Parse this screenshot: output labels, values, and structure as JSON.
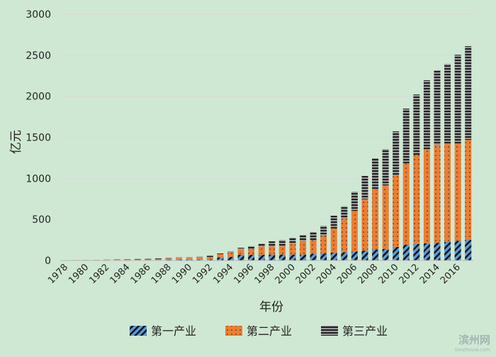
{
  "chart_data": {
    "type": "bar",
    "stacked": true,
    "title": "",
    "xlabel": "年份",
    "ylabel": "亿元",
    "ylim": [
      0,
      3000
    ],
    "yticks": [
      0,
      500,
      1000,
      1500,
      2000,
      2500,
      3000
    ],
    "categories": [
      "1978",
      "1979",
      "1980",
      "1981",
      "1982",
      "1983",
      "1984",
      "1985",
      "1986",
      "1987",
      "1988",
      "1989",
      "1990",
      "1991",
      "1992",
      "1993",
      "1994",
      "1995",
      "1996",
      "1997",
      "1998",
      "1999",
      "2000",
      "2001",
      "2002",
      "2003",
      "2004",
      "2005",
      "2006",
      "2007",
      "2008",
      "2009",
      "2010",
      "2011",
      "2012",
      "2013",
      "2014",
      "2015",
      "2016",
      "2017"
    ],
    "xtick_labels": [
      "1978",
      "1980",
      "1982",
      "1984",
      "1986",
      "1988",
      "1990",
      "1992",
      "1994",
      "1996",
      "1998",
      "2000",
      "2002",
      "2004",
      "2006",
      "2008",
      "2010",
      "2012",
      "2014",
      "2016"
    ],
    "series": [
      {
        "name": "第一产业",
        "color": "#5b9bd5",
        "values": [
          2,
          2,
          2,
          3,
          3,
          4,
          4,
          5,
          5,
          6,
          8,
          9,
          10,
          10,
          12,
          35,
          45,
          70,
          70,
          70,
          72,
          72,
          72,
          72,
          78,
          85,
          95,
          100,
          110,
          120,
          130,
          140,
          165,
          190,
          200,
          210,
          215,
          225,
          240,
          250
        ]
      },
      {
        "name": "第二产业",
        "color": "#ed7d31",
        "values": [
          2,
          3,
          3,
          3,
          4,
          5,
          6,
          8,
          9,
          11,
          16,
          18,
          18,
          20,
          25,
          43,
          50,
          60,
          70,
          100,
          98,
          103,
          128,
          168,
          172,
          215,
          295,
          410,
          495,
          625,
          735,
          775,
          872,
          995,
          1088,
          1138,
          1194,
          1201,
          1186,
          1219
        ]
      },
      {
        "name": "第三产业",
        "color": "#8c8c8c",
        "values": [
          1,
          1,
          2,
          2,
          3,
          3,
          4,
          5,
          6,
          8,
          11,
          13,
          14,
          15,
          20,
          8,
          17,
          25,
          35,
          35,
          63,
          75,
          77,
          71,
          96,
          123,
          155,
          150,
          233,
          285,
          380,
          442,
          536,
          665,
          734,
          847,
          907,
          968,
          1080,
          1141
        ]
      }
    ],
    "grid": true,
    "legend": "bottom"
  },
  "watermark": {
    "name": "滨州网",
    "url": "binzhouw.com"
  }
}
